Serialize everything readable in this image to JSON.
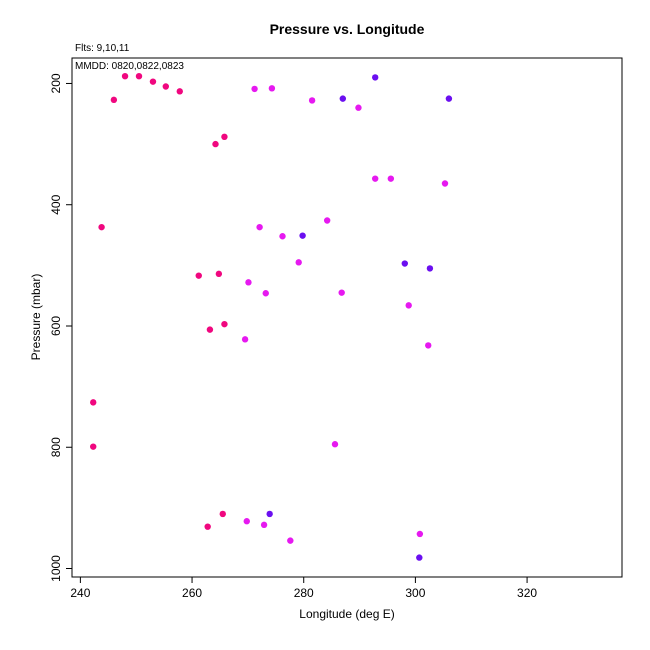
{
  "chart_data": {
    "type": "scatter",
    "title": "Pressure vs. Longitude",
    "xlabel": "Longitude (deg E)",
    "ylabel": "Pressure (mbar)",
    "annotations": {
      "flights": "Flts: 9,10,11",
      "dates": "MMDD: 0820,0822,0823"
    },
    "xlim": [
      238.5,
      337
    ],
    "ylim": [
      1014,
      158
    ],
    "y_inverted": true,
    "x_ticks": [
      240,
      260,
      280,
      300,
      320
    ],
    "y_ticks": [
      200,
      400,
      600,
      800,
      1000
    ],
    "grid": false,
    "colors": {
      "pink": "#f0077f",
      "magenta": "#e619f0",
      "violet": "#6b0ff0"
    },
    "points": [
      {
        "x": 248.0,
        "y": 188,
        "c": "pink"
      },
      {
        "x": 250.5,
        "y": 188,
        "c": "pink"
      },
      {
        "x": 253.0,
        "y": 197,
        "c": "pink"
      },
      {
        "x": 255.3,
        "y": 205,
        "c": "pink"
      },
      {
        "x": 257.8,
        "y": 213,
        "c": "pink"
      },
      {
        "x": 246.0,
        "y": 227,
        "c": "pink"
      },
      {
        "x": 265.8,
        "y": 288,
        "c": "pink"
      },
      {
        "x": 264.2,
        "y": 300,
        "c": "pink"
      },
      {
        "x": 243.8,
        "y": 437,
        "c": "pink"
      },
      {
        "x": 261.2,
        "y": 517,
        "c": "pink"
      },
      {
        "x": 264.8,
        "y": 514,
        "c": "pink"
      },
      {
        "x": 265.8,
        "y": 597,
        "c": "pink"
      },
      {
        "x": 263.2,
        "y": 606,
        "c": "pink"
      },
      {
        "x": 242.3,
        "y": 726,
        "c": "pink"
      },
      {
        "x": 242.3,
        "y": 799,
        "c": "pink"
      },
      {
        "x": 265.5,
        "y": 910,
        "c": "pink"
      },
      {
        "x": 262.8,
        "y": 931,
        "c": "pink"
      },
      {
        "x": 271.2,
        "y": 209,
        "c": "magenta"
      },
      {
        "x": 274.3,
        "y": 208,
        "c": "magenta"
      },
      {
        "x": 281.5,
        "y": 228,
        "c": "magenta"
      },
      {
        "x": 289.8,
        "y": 240,
        "c": "magenta"
      },
      {
        "x": 292.8,
        "y": 357,
        "c": "magenta"
      },
      {
        "x": 295.6,
        "y": 357,
        "c": "magenta"
      },
      {
        "x": 305.3,
        "y": 365,
        "c": "magenta"
      },
      {
        "x": 284.2,
        "y": 426,
        "c": "magenta"
      },
      {
        "x": 272.1,
        "y": 437,
        "c": "magenta"
      },
      {
        "x": 276.2,
        "y": 452,
        "c": "magenta"
      },
      {
        "x": 279.1,
        "y": 495,
        "c": "magenta"
      },
      {
        "x": 270.1,
        "y": 528,
        "c": "magenta"
      },
      {
        "x": 273.2,
        "y": 546,
        "c": "magenta"
      },
      {
        "x": 286.8,
        "y": 545,
        "c": "magenta"
      },
      {
        "x": 298.8,
        "y": 566,
        "c": "magenta"
      },
      {
        "x": 269.5,
        "y": 622,
        "c": "magenta"
      },
      {
        "x": 302.3,
        "y": 632,
        "c": "magenta"
      },
      {
        "x": 285.6,
        "y": 795,
        "c": "magenta"
      },
      {
        "x": 269.8,
        "y": 922,
        "c": "magenta"
      },
      {
        "x": 272.9,
        "y": 928,
        "c": "magenta"
      },
      {
        "x": 300.8,
        "y": 943,
        "c": "magenta"
      },
      {
        "x": 277.6,
        "y": 954,
        "c": "magenta"
      },
      {
        "x": 292.8,
        "y": 190,
        "c": "violet"
      },
      {
        "x": 287.0,
        "y": 225,
        "c": "violet"
      },
      {
        "x": 306.0,
        "y": 225,
        "c": "violet"
      },
      {
        "x": 279.8,
        "y": 451,
        "c": "violet"
      },
      {
        "x": 298.1,
        "y": 497,
        "c": "violet"
      },
      {
        "x": 302.6,
        "y": 505,
        "c": "violet"
      },
      {
        "x": 273.9,
        "y": 910,
        "c": "violet"
      },
      {
        "x": 300.7,
        "y": 982,
        "c": "violet"
      }
    ]
  }
}
